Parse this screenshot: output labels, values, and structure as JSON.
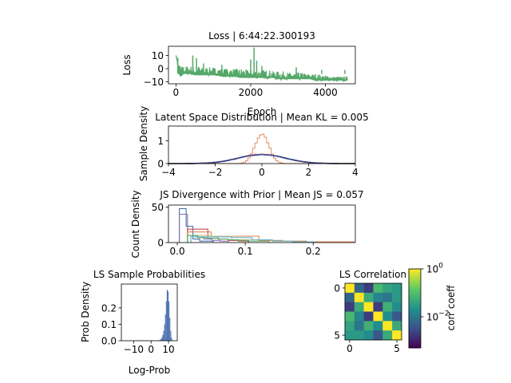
{
  "chart_data": [
    {
      "id": "loss",
      "type": "line",
      "title": "Loss | 6:44:22.300193",
      "xlabel": "Epoch",
      "ylabel": "Loss",
      "xlim": [
        -200,
        4800
      ],
      "ylim": [
        -11.5,
        17
      ],
      "xticks": [
        0,
        2000,
        4000
      ],
      "yticks": [
        10,
        0,
        -10
      ],
      "color": "#55a868",
      "series": [
        {
          "x": [
            0,
            30,
            60,
            120,
            200,
            300,
            400,
            500,
            600,
            700,
            800,
            900,
            1000,
            1100,
            1200,
            1300,
            1400,
            1500,
            1600,
            1700,
            1800,
            1900,
            2000,
            2100,
            2200,
            2300,
            2400,
            2500,
            2600,
            2700,
            2800,
            2900,
            3000,
            3100,
            3200,
            3300,
            3400,
            3500,
            3600,
            3700,
            3800,
            3900,
            4000,
            4100,
            4200,
            4300,
            4400,
            4500,
            4600
          ],
          "y": [
            10,
            6,
            -3,
            -6,
            -4,
            -4,
            -4,
            -5,
            -5,
            -5,
            -5,
            -5,
            -5,
            -5,
            -6,
            -6,
            -6,
            -6,
            -6,
            -7,
            -7,
            -7,
            -7,
            -7,
            -7,
            -7,
            -7,
            -7,
            -7,
            -8,
            -8,
            -8,
            -8,
            -8,
            -8,
            -8,
            -8,
            -8,
            -8,
            -9,
            -9,
            -9,
            -9,
            -9,
            -9,
            -9,
            -9,
            -9,
            -9
          ],
          "upper": [
            10,
            9,
            4,
            2,
            2,
            2,
            2,
            1,
            2,
            1,
            1,
            1,
            1,
            1,
            0,
            0,
            0,
            0,
            0,
            0,
            0,
            -1,
            -1,
            -1,
            -1,
            -1,
            -1,
            -1,
            -2,
            -2,
            -2,
            -2,
            -3,
            -3,
            -3,
            -3,
            -3,
            -4,
            -4,
            -4,
            -4,
            -5,
            -5,
            -5,
            -6,
            -6,
            -6,
            -6,
            -6
          ],
          "spikes": [
            [
              50,
              8
            ],
            [
              450,
              10
            ],
            [
              550,
              8
            ],
            [
              740,
              4
            ],
            [
              1230,
              3
            ],
            [
              2000,
              7
            ],
            [
              2090,
              16
            ],
            [
              2160,
              6
            ],
            [
              2300,
              2
            ],
            [
              3220,
              1
            ],
            [
              3900,
              -1
            ],
            [
              4400,
              -4
            ],
            [
              4520,
              -1
            ]
          ]
        }
      ]
    },
    {
      "id": "latent",
      "type": "line",
      "title": "Latent Space Distribution | Mean KL = 0.005",
      "xlabel": "",
      "ylabel": "Sample Density",
      "xlim": [
        -4,
        4
      ],
      "ylim": [
        0,
        1.65
      ],
      "xticks": [
        -4,
        -2,
        0,
        2,
        4
      ],
      "yticks": [
        1,
        0
      ],
      "series": [
        {
          "kind": "prior",
          "color": "#000000",
          "mu": 0,
          "sigma": 1,
          "scale": 1
        },
        {
          "kind": "hist",
          "color": "#dd8452",
          "mu": 0,
          "sigma": 0.3,
          "scale": 1
        },
        {
          "kind": "hist",
          "color": "#4c72b0",
          "mu": 0.02,
          "sigma": 1.0,
          "scale": 1
        },
        {
          "kind": "hist",
          "color": "#c44e52",
          "mu": -0.03,
          "sigma": 0.98,
          "scale": 1
        },
        {
          "kind": "hist",
          "color": "#8172b3",
          "mu": 0.01,
          "sigma": 1.02,
          "scale": 1
        },
        {
          "kind": "hist",
          "color": "#1f3a93",
          "mu": 0,
          "sigma": 1.0,
          "scale": 1
        }
      ]
    },
    {
      "id": "js",
      "type": "bar",
      "title": "JS Divergence with Prior | Mean JS = 0.057",
      "xlabel": "",
      "ylabel": "Count Density",
      "xlim": [
        -0.013,
        0.262
      ],
      "ylim": [
        0,
        53
      ],
      "xticks": [
        0.0,
        0.1,
        0.2
      ],
      "yticks": [
        50,
        0
      ],
      "series": [
        {
          "color": "#4c72b0",
          "edges": [
            0.003,
            0.013,
            0.023,
            0.033,
            0.043,
            0.053
          ],
          "values": [
            48,
            23,
            5,
            2,
            2
          ]
        },
        {
          "color": "#8172b3",
          "edges": [
            0.003,
            0.015,
            0.027,
            0.039,
            0.051,
            0.063,
            0.075
          ],
          "values": [
            40,
            10,
            8,
            5,
            3,
            2
          ]
        },
        {
          "color": "#c44e52",
          "edges": [
            0.015,
            0.03,
            0.045,
            0.06,
            0.075,
            0.09,
            0.105
          ],
          "values": [
            19,
            19,
            8,
            5,
            3,
            2
          ]
        },
        {
          "color": "#dd8452",
          "edges": [
            0.015,
            0.05,
            0.085,
            0.12,
            0.155,
            0.19,
            0.225,
            0.26
          ],
          "values": [
            15,
            9,
            9,
            3,
            2,
            1,
            1
          ]
        },
        {
          "color": "#ccb974",
          "edges": [
            0.02,
            0.05,
            0.08,
            0.11,
            0.14,
            0.17
          ],
          "values": [
            10,
            9,
            4,
            4,
            2
          ]
        },
        {
          "color": "#64b5cd",
          "edges": [
            0.02,
            0.05,
            0.08,
            0.11,
            0.14,
            0.17,
            0.2
          ],
          "values": [
            8,
            8,
            7,
            4,
            2,
            1
          ]
        },
        {
          "color": "#55a868",
          "edges": [
            0.015,
            0.03,
            0.045,
            0.06,
            0.075,
            0.09,
            0.105,
            0.12,
            0.135
          ],
          "values": [
            10,
            7,
            6,
            5,
            4,
            3,
            2,
            2
          ]
        }
      ]
    },
    {
      "id": "probs",
      "type": "bar",
      "title": "LS Sample Probabilities",
      "xlabel": "Log-Prob",
      "ylabel": "Prob Density",
      "xlim": [
        -17,
        15
      ],
      "ylim": [
        0,
        0.345
      ],
      "xticks": [
        -10,
        0,
        10
      ],
      "yticks": [
        0.0,
        0.1,
        0.2
      ],
      "color": "#4c72b0",
      "bin_start": 4.5,
      "bin_width": 0.5,
      "values": [
        0.003,
        0.005,
        0.01,
        0.02,
        0.035,
        0.06,
        0.1,
        0.16,
        0.24,
        0.31,
        0.3,
        0.24,
        0.14,
        0.06,
        0.02
      ]
    },
    {
      "id": "corr",
      "type": "heatmap",
      "title": "LS Correlation",
      "xlabel": "",
      "ylabel": "",
      "xticks": [
        0,
        5
      ],
      "yticks": [
        0,
        5
      ],
      "colorbar_label": "corr coeff",
      "colorbar_ticks": [
        "10^0",
        "10^-2"
      ],
      "colormap": "viridis",
      "log_range": [
        -3.3,
        0
      ],
      "matrix": [
        [
          1.0,
          0.006,
          0.002,
          0.08,
          0.04,
          0.03
        ],
        [
          0.006,
          1.0,
          0.05,
          0.015,
          0.01,
          0.03
        ],
        [
          0.002,
          0.05,
          1.0,
          0.002,
          0.06,
          0.02
        ],
        [
          0.08,
          0.015,
          0.002,
          1.0,
          0.02,
          0.004
        ],
        [
          0.04,
          0.01,
          0.06,
          0.02,
          1.0,
          0.05
        ],
        [
          0.03,
          0.03,
          0.02,
          0.004,
          0.05,
          1.0
        ]
      ]
    }
  ]
}
